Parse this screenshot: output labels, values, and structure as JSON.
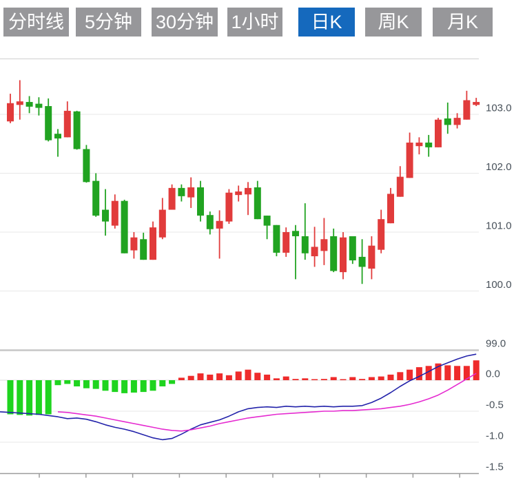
{
  "tabs": [
    {
      "label": "分时线",
      "active": false
    },
    {
      "label": "5分钟",
      "active": false
    },
    {
      "label": "30分钟",
      "active": false
    },
    {
      "label": "1小时",
      "active": false
    },
    {
      "label": "日K",
      "active": true
    },
    {
      "label": "周K",
      "active": false
    },
    {
      "label": "月K",
      "active": false
    }
  ],
  "colors": {
    "candle_up": "#e13b3b",
    "candle_down": "#21a321",
    "hist_up": "#ee2b2b",
    "hist_down": "#1fd41f",
    "dif_line": "#2222aa",
    "dea_line": "#e52ad0",
    "tab_bg": "#97979a",
    "tab_active_bg": "#1569bd",
    "axis_text": "#475059"
  },
  "chart_data": {
    "type": "candlestick",
    "title": "",
    "legend_position": "none",
    "grid": true,
    "panels": [
      {
        "name": "price",
        "y_axis": {
          "side": "right",
          "ticks": [
            {
              "label": "103.0",
              "value": 103.0
            },
            {
              "label": "102.0",
              "value": 102.0
            },
            {
              "label": "101.0",
              "value": 101.0
            },
            {
              "label": "100.0",
              "value": 100.0
            },
            {
              "label": "99.0",
              "value": 99.0
            }
          ],
          "range": [
            99.0,
            103.95
          ]
        },
        "candles_ohlc": [
          [
            102.88,
            103.35,
            102.85,
            103.19
          ],
          [
            103.16,
            103.58,
            102.91,
            103.22
          ],
          [
            103.21,
            103.31,
            103.02,
            103.13
          ],
          [
            103.18,
            103.29,
            102.98,
            103.11
          ],
          [
            103.14,
            103.27,
            102.54,
            102.56
          ],
          [
            102.67,
            102.75,
            102.28,
            102.59
          ],
          [
            102.61,
            103.22,
            102.61,
            103.06
          ],
          [
            103.05,
            103.06,
            102.4,
            102.41
          ],
          [
            102.41,
            102.48,
            101.84,
            101.85
          ],
          [
            101.87,
            102.0,
            101.26,
            101.28
          ],
          [
            101.38,
            101.73,
            100.94,
            101.18
          ],
          [
            101.11,
            101.64,
            101.06,
            101.53
          ],
          [
            101.53,
            101.55,
            100.64,
            100.64
          ],
          [
            100.69,
            101.0,
            100.55,
            100.91
          ],
          [
            100.88,
            100.99,
            100.53,
            100.53
          ],
          [
            100.53,
            101.18,
            100.53,
            101.08
          ],
          [
            100.91,
            101.58,
            100.88,
            101.38
          ],
          [
            101.38,
            101.81,
            101.38,
            101.75
          ],
          [
            101.75,
            101.81,
            101.52,
            101.61
          ],
          [
            101.59,
            101.93,
            101.41,
            101.76
          ],
          [
            101.76,
            101.87,
            101.18,
            101.28
          ],
          [
            101.29,
            101.35,
            100.96,
            101.05
          ],
          [
            101.06,
            101.37,
            100.55,
            101.19
          ],
          [
            101.18,
            101.73,
            101.14,
            101.67
          ],
          [
            101.63,
            101.79,
            101.52,
            101.69
          ],
          [
            101.64,
            101.85,
            101.29,
            101.75
          ],
          [
            101.76,
            101.87,
            101.22,
            101.22
          ],
          [
            101.28,
            101.28,
            100.88,
            101.11
          ],
          [
            101.12,
            101.12,
            100.59,
            100.65
          ],
          [
            100.65,
            101.08,
            100.58,
            101.0
          ],
          [
            101.02,
            101.12,
            100.2,
            100.93
          ],
          [
            100.93,
            101.49,
            100.53,
            100.64
          ],
          [
            100.59,
            101.09,
            100.41,
            100.75
          ],
          [
            100.68,
            101.24,
            100.44,
            100.88
          ],
          [
            100.93,
            101.06,
            100.32,
            100.34
          ],
          [
            100.32,
            101.0,
            100.2,
            100.91
          ],
          [
            100.93,
            100.93,
            100.46,
            100.52
          ],
          [
            100.58,
            100.88,
            100.12,
            100.41
          ],
          [
            100.38,
            100.93,
            100.2,
            100.77
          ],
          [
            100.7,
            101.38,
            100.64,
            101.22
          ],
          [
            101.15,
            101.75,
            101.15,
            101.65
          ],
          [
            101.6,
            102.12,
            101.6,
            101.94
          ],
          [
            101.92,
            102.69,
            101.92,
            102.52
          ],
          [
            102.46,
            102.61,
            102.32,
            102.52
          ],
          [
            102.52,
            102.65,
            102.28,
            102.44
          ],
          [
            102.44,
            102.94,
            102.44,
            102.91
          ],
          [
            102.93,
            103.2,
            102.67,
            102.82
          ],
          [
            102.82,
            103.02,
            102.76,
            102.94
          ],
          [
            102.91,
            103.4,
            102.91,
            103.24
          ],
          [
            103.16,
            103.28,
            103.14,
            103.21
          ]
        ]
      },
      {
        "name": "macd",
        "y_axis": {
          "side": "right",
          "ticks": [
            {
              "label": "0.0",
              "value": 0.0
            },
            {
              "label": "-0.5",
              "value": -0.5
            },
            {
              "label": "-1.0",
              "value": -1.0
            },
            {
              "label": "-1.5",
              "value": -1.5
            }
          ],
          "range": [
            -1.5,
            0.53
          ]
        },
        "histogram": [
          -0.55,
          -0.56,
          -0.57,
          -0.56,
          -0.55,
          -0.08,
          -0.06,
          -0.1,
          -0.13,
          -0.14,
          -0.17,
          -0.19,
          -0.21,
          -0.2,
          -0.19,
          -0.17,
          -0.1,
          -0.06,
          0.04,
          0.07,
          0.11,
          0.09,
          0.11,
          0.08,
          0.14,
          0.17,
          0.12,
          0.09,
          0.03,
          0.06,
          0.02,
          0.03,
          0.01,
          0.02,
          0.05,
          0.01,
          0.05,
          0.02,
          0.05,
          0.06,
          0.09,
          0.13,
          0.17,
          0.21,
          0.23,
          0.27,
          0.24,
          0.23,
          0.23,
          0.32
        ],
        "dif": [
          -0.52,
          -0.53,
          -0.54,
          -0.55,
          -0.57,
          -0.59,
          -0.62,
          -0.61,
          -0.63,
          -0.67,
          -0.72,
          -0.76,
          -0.79,
          -0.83,
          -0.88,
          -0.93,
          -0.96,
          -0.94,
          -0.87,
          -0.79,
          -0.72,
          -0.68,
          -0.64,
          -0.58,
          -0.51,
          -0.46,
          -0.44,
          -0.43,
          -0.44,
          -0.42,
          -0.43,
          -0.42,
          -0.43,
          -0.42,
          -0.43,
          -0.42,
          -0.42,
          -0.41,
          -0.36,
          -0.29,
          -0.2,
          -0.1,
          -0.01,
          0.06,
          0.14,
          0.22,
          0.28,
          0.34,
          0.39,
          0.42
        ],
        "dif_lead": -0.51,
        "dea": [
          null,
          null,
          null,
          null,
          null,
          -0.51,
          -0.52,
          -0.54,
          -0.56,
          -0.58,
          -0.61,
          -0.64,
          -0.67,
          -0.7,
          -0.73,
          -0.76,
          -0.79,
          -0.81,
          -0.82,
          -0.8,
          -0.77,
          -0.74,
          -0.7,
          -0.67,
          -0.64,
          -0.61,
          -0.59,
          -0.57,
          -0.55,
          -0.54,
          -0.53,
          -0.52,
          -0.51,
          -0.5,
          -0.5,
          -0.49,
          -0.49,
          -0.48,
          -0.47,
          -0.46,
          -0.44,
          -0.42,
          -0.39,
          -0.35,
          -0.3,
          -0.24,
          -0.16,
          -0.07,
          0.02,
          0.11
        ]
      }
    ]
  }
}
